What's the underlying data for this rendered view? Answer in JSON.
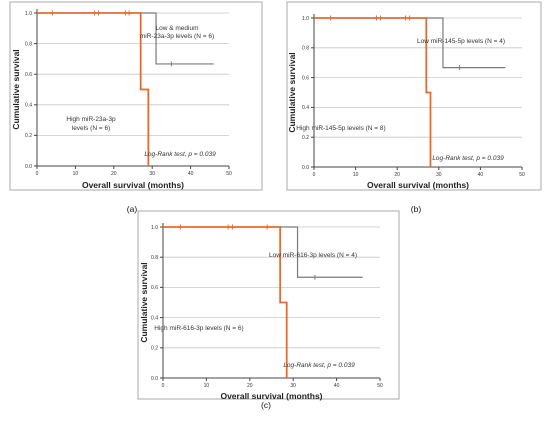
{
  "chart_data": [
    {
      "type": "line",
      "caption": "(a)",
      "ylabel": "Cumulative survival",
      "xlabel": "Overall survival (months)",
      "xlim": [
        0,
        50
      ],
      "ylim": [
        0,
        1
      ],
      "xticks": [
        "0",
        "10",
        "20",
        "30",
        "40",
        "50"
      ],
      "yticks": [
        "0.0",
        "0.2",
        "0.4",
        "0.6",
        "0.8",
        "1.0"
      ],
      "grid": "horizontal",
      "series": [
        {
          "color": "#e8692e",
          "steps": [
            [
              0,
              1.0
            ],
            [
              27,
              1.0
            ],
            [
              27,
              0.5
            ],
            [
              29,
              0.5
            ],
            [
              29,
              0.0
            ]
          ],
          "censored": [
            [
              4,
              1.0
            ],
            [
              15,
              1.0
            ],
            [
              16,
              1.0
            ],
            [
              23,
              1.0
            ],
            [
              24,
              1.0
            ]
          ],
          "label_lines": [
            "High miR-23a-3p",
            "levels (N = 6)"
          ]
        },
        {
          "color": "#7a7a7a",
          "steps": [
            [
              27,
              1.0
            ],
            [
              31,
              1.0
            ],
            [
              31,
              0.667
            ],
            [
              46,
              0.667
            ]
          ],
          "censored": [
            [
              35,
              0.667
            ]
          ],
          "label_lines": [
            "Low & medium",
            "miR-23a-3p levels (N = 6)"
          ]
        }
      ],
      "annotation": "Log-Rank test, p = 0.039"
    },
    {
      "type": "line",
      "caption": "(b)",
      "ylabel": "Cumulative survival",
      "xlabel": "Overall survival (months)",
      "xlim": [
        0,
        50
      ],
      "ylim": [
        0,
        1
      ],
      "xticks": [
        "0",
        "10",
        "20",
        "30",
        "40",
        "50"
      ],
      "yticks": [
        "0.0",
        "0.2",
        "0.4",
        "0.6",
        "0.8",
        "1.0"
      ],
      "grid": "horizontal",
      "series": [
        {
          "color": "#e8692e",
          "steps": [
            [
              0,
              1.0
            ],
            [
              27,
              1.0
            ],
            [
              27,
              0.5
            ],
            [
              28,
              0.5
            ],
            [
              28,
              0.0
            ]
          ],
          "censored": [
            [
              4,
              1.0
            ],
            [
              15,
              1.0
            ],
            [
              16,
              1.0
            ],
            [
              22,
              1.0
            ],
            [
              23,
              1.0
            ]
          ],
          "label_lines": [
            "High miR-145-5p levels (N = 8)"
          ]
        },
        {
          "color": "#7a7a7a",
          "steps": [
            [
              27,
              1.0
            ],
            [
              31,
              1.0
            ],
            [
              31,
              0.667
            ],
            [
              46,
              0.667
            ]
          ],
          "censored": [
            [
              35,
              0.667
            ]
          ],
          "label_lines": [
            "Low miR-145-5p levels (N = 4)"
          ]
        }
      ],
      "annotation": "Log-Rank test, p = 0.039"
    },
    {
      "type": "line",
      "caption": "(c)",
      "ylabel": "Cumulative survival",
      "xlabel": "Overall survival (months)",
      "xlim": [
        0,
        50
      ],
      "ylim": [
        0,
        1
      ],
      "xticks": [
        "0",
        "10",
        "20",
        "30",
        "40",
        "50"
      ],
      "yticks": [
        "0.0",
        "0.2",
        "0.4",
        "0.6",
        "0.8",
        "1.0"
      ],
      "grid": "horizontal",
      "series": [
        {
          "color": "#e8692e",
          "steps": [
            [
              0,
              1.0
            ],
            [
              27,
              1.0
            ],
            [
              27,
              0.5
            ],
            [
              28.5,
              0.5
            ],
            [
              28.5,
              0.0
            ]
          ],
          "censored": [
            [
              4,
              1.0
            ],
            [
              15,
              1.0
            ],
            [
              16,
              1.0
            ],
            [
              24,
              1.0
            ]
          ],
          "label_lines": [
            "High miR-616-3p levels (N = 6)"
          ]
        },
        {
          "color": "#7a7a7a",
          "steps": [
            [
              27,
              1.0
            ],
            [
              31,
              1.0
            ],
            [
              31,
              0.667
            ],
            [
              46,
              0.667
            ]
          ],
          "censored": [
            [
              35,
              0.667
            ]
          ],
          "label_lines": [
            "Low miR-616-3p levels (N = 4)"
          ]
        }
      ],
      "annotation": "Log-Rank test, p = 0.039"
    }
  ]
}
